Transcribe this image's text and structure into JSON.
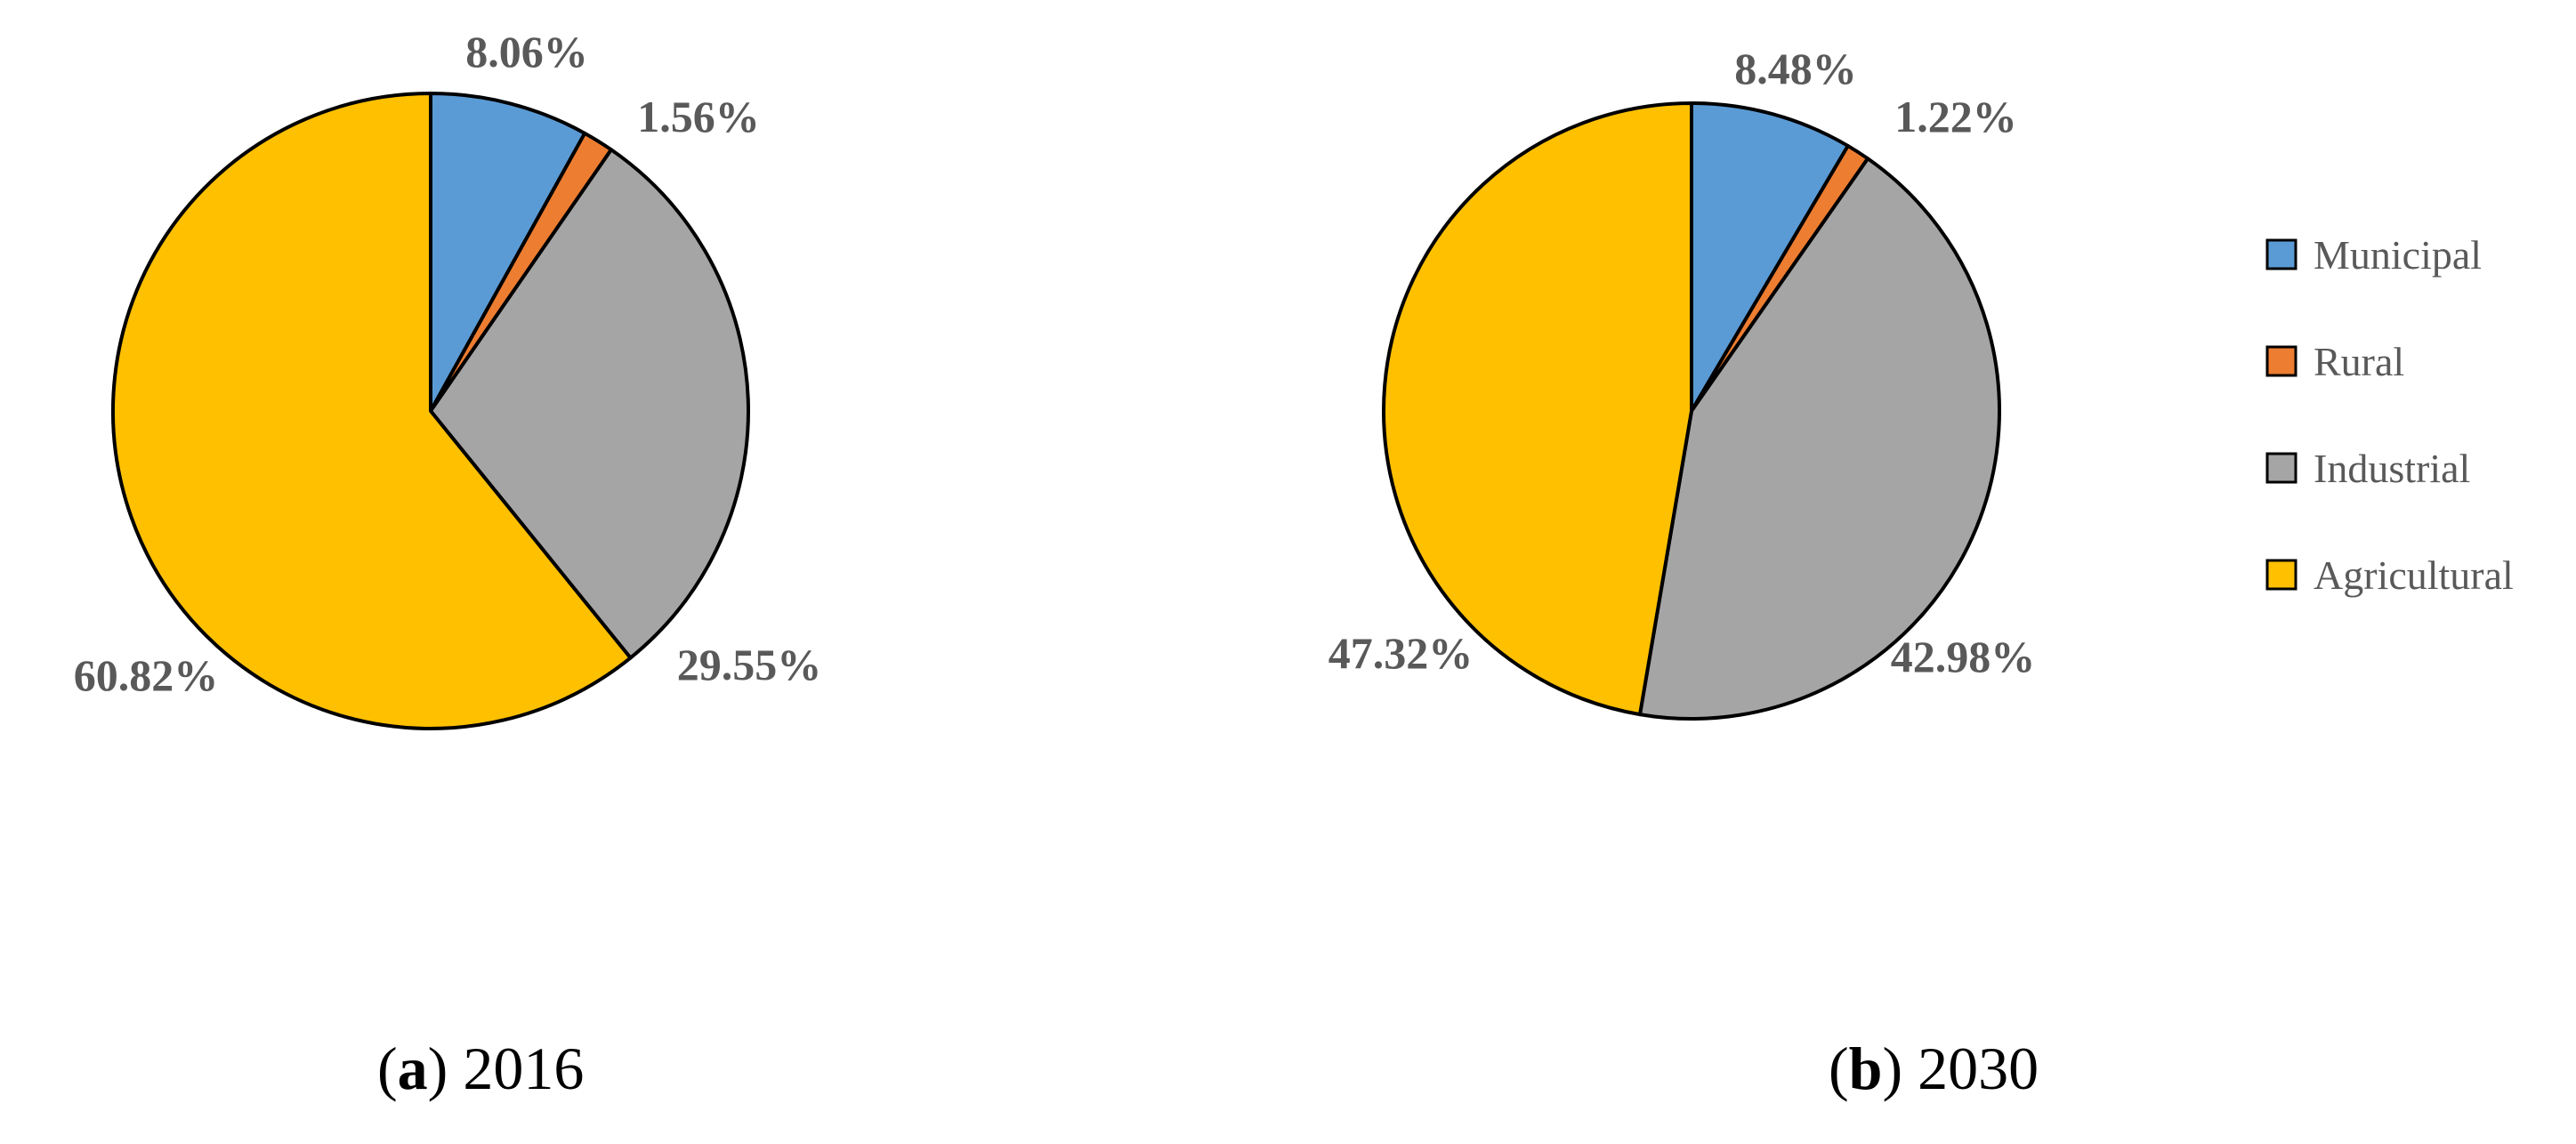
{
  "chart_data": [
    {
      "type": "pie",
      "title": "",
      "caption_letter": "a",
      "caption_year": "2016",
      "categories": [
        "Municipal",
        "Rural",
        "Industrial",
        "Agricultural"
      ],
      "values": [
        8.06,
        1.56,
        29.55,
        60.82
      ],
      "labels": [
        "8.06%",
        "1.56%",
        "29.55%",
        "60.82%"
      ],
      "colors": [
        "#5B9BD5",
        "#ED7D31",
        "#A5A5A5",
        "#FFC000"
      ],
      "start_angle": "12 o'clock",
      "direction": "clockwise"
    },
    {
      "type": "pie",
      "title": "",
      "caption_letter": "b",
      "caption_year": "2030",
      "categories": [
        "Municipal",
        "Rural",
        "Industrial",
        "Agricultural"
      ],
      "values": [
        8.48,
        1.22,
        42.98,
        47.32
      ],
      "labels": [
        "8.48%",
        "1.22%",
        "42.98%",
        "47.32%"
      ],
      "colors": [
        "#5B9BD5",
        "#ED7D31",
        "#A5A5A5",
        "#FFC000"
      ],
      "start_angle": "12 o'clock",
      "direction": "clockwise"
    }
  ],
  "legend": {
    "placement": "right",
    "items": [
      {
        "label": "Municipal",
        "color": "#5B9BD5"
      },
      {
        "label": "Rural",
        "color": "#ED7D31"
      },
      {
        "label": "Industrial",
        "color": "#A5A5A5"
      },
      {
        "label": "Agricultural",
        "color": "#FFC000"
      }
    ]
  }
}
